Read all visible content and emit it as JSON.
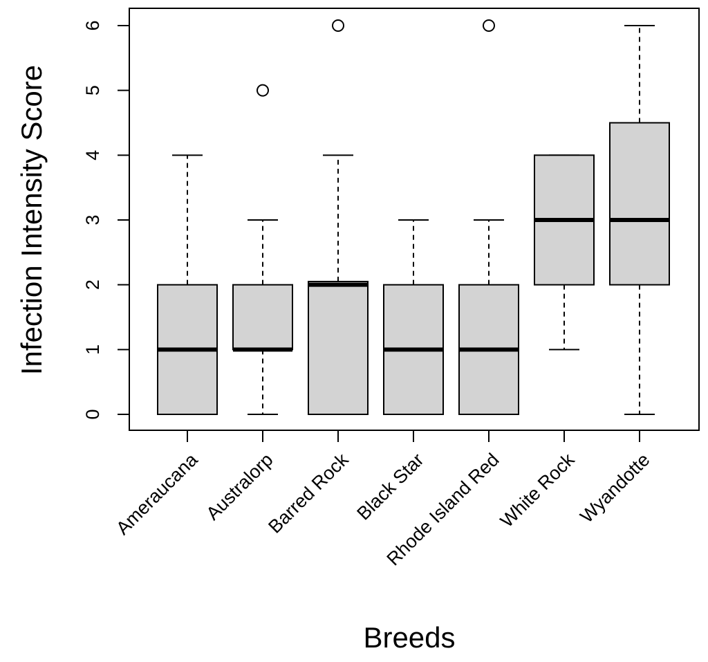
{
  "chart_data": {
    "type": "boxplot",
    "title": "",
    "xlabel": "Breeds",
    "ylabel": "Infection Intensity Score",
    "ylim": [
      0,
      6
    ],
    "yticks": [
      0,
      1,
      2,
      3,
      4,
      5,
      6
    ],
    "grid": false,
    "box_color": "#d3d3d3",
    "line_color": "#000000",
    "categories": [
      "Ameraucana",
      "Australorp",
      "Barred Rock",
      "Black Star",
      "Rhode Island Red",
      "White Rock",
      "Wyandotte"
    ],
    "boxes": [
      {
        "name": "Ameraucana",
        "whisker_low": 0,
        "q1": 0,
        "median": 1,
        "q3": 2,
        "whisker_high": 4,
        "outliers": []
      },
      {
        "name": "Australorp",
        "whisker_low": 0,
        "q1": 1,
        "median": 1,
        "q3": 2,
        "whisker_high": 3,
        "outliers": [
          5
        ]
      },
      {
        "name": "Barred Rock",
        "whisker_low": 0,
        "q1": 0,
        "median": 2,
        "q3": 2.05,
        "whisker_high": 4,
        "outliers": [
          6
        ]
      },
      {
        "name": "Black Star",
        "whisker_low": 0,
        "q1": 0,
        "median": 1,
        "q3": 2,
        "whisker_high": 3,
        "outliers": []
      },
      {
        "name": "Rhode Island Red",
        "whisker_low": 0,
        "q1": 0,
        "median": 1,
        "q3": 2,
        "whisker_high": 3,
        "outliers": [
          6
        ]
      },
      {
        "name": "White Rock",
        "whisker_low": 1,
        "q1": 2,
        "median": 3,
        "q3": 4,
        "whisker_high": 4,
        "outliers": []
      },
      {
        "name": "Wyandotte",
        "whisker_low": 0,
        "q1": 2,
        "median": 3,
        "q3": 4.5,
        "whisker_high": 6,
        "outliers": []
      }
    ]
  }
}
